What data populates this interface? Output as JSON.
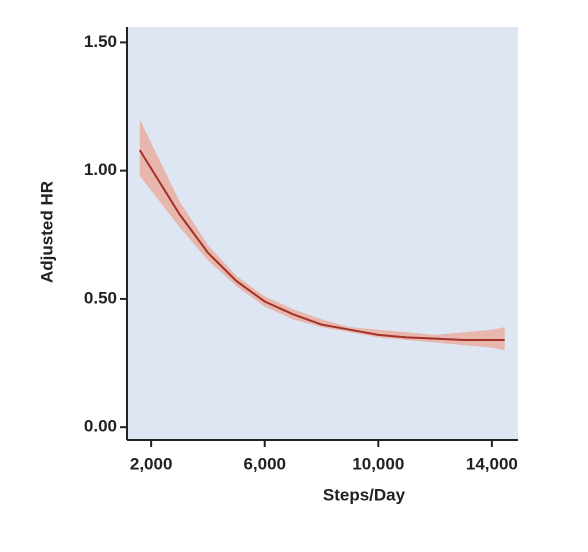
{
  "chart_data": {
    "type": "line",
    "xlabel": "Steps/Day",
    "ylabel": "Adjusted HR",
    "x": [
      1600,
      3000,
      4000,
      5000,
      6000,
      7000,
      8000,
      9000,
      10000,
      11000,
      12000,
      13000,
      14000,
      14450
    ],
    "series": [
      {
        "color": "#a3312a",
        "band_color": "#eaa796",
        "values": [
          1.08,
          0.83,
          0.68,
          0.57,
          0.49,
          0.44,
          0.4,
          0.38,
          0.36,
          0.35,
          0.345,
          0.34,
          0.34,
          0.34
        ],
        "lower": [
          0.98,
          0.78,
          0.65,
          0.55,
          0.47,
          0.42,
          0.39,
          0.37,
          0.35,
          0.34,
          0.33,
          0.32,
          0.31,
          0.3
        ],
        "upper": [
          1.2,
          0.88,
          0.71,
          0.59,
          0.51,
          0.46,
          0.42,
          0.39,
          0.38,
          0.37,
          0.36,
          0.37,
          0.38,
          0.39
        ]
      }
    ],
    "xlim": [
      1150,
      14920
    ],
    "ylim": [
      -0.05,
      1.56
    ],
    "xticks": [
      {
        "value": 2000,
        "label": "2,000"
      },
      {
        "value": 6000,
        "label": "6,000"
      },
      {
        "value": 10000,
        "label": "10,000"
      },
      {
        "value": 14000,
        "label": "14,000"
      }
    ],
    "yticks": [
      {
        "value": 0,
        "label": "0.00"
      },
      {
        "value": 0.5,
        "label": "0.50"
      },
      {
        "value": 1,
        "label": "1.00"
      },
      {
        "value": 1.5,
        "label": "1.50"
      }
    ],
    "background": "#dde6f2"
  }
}
